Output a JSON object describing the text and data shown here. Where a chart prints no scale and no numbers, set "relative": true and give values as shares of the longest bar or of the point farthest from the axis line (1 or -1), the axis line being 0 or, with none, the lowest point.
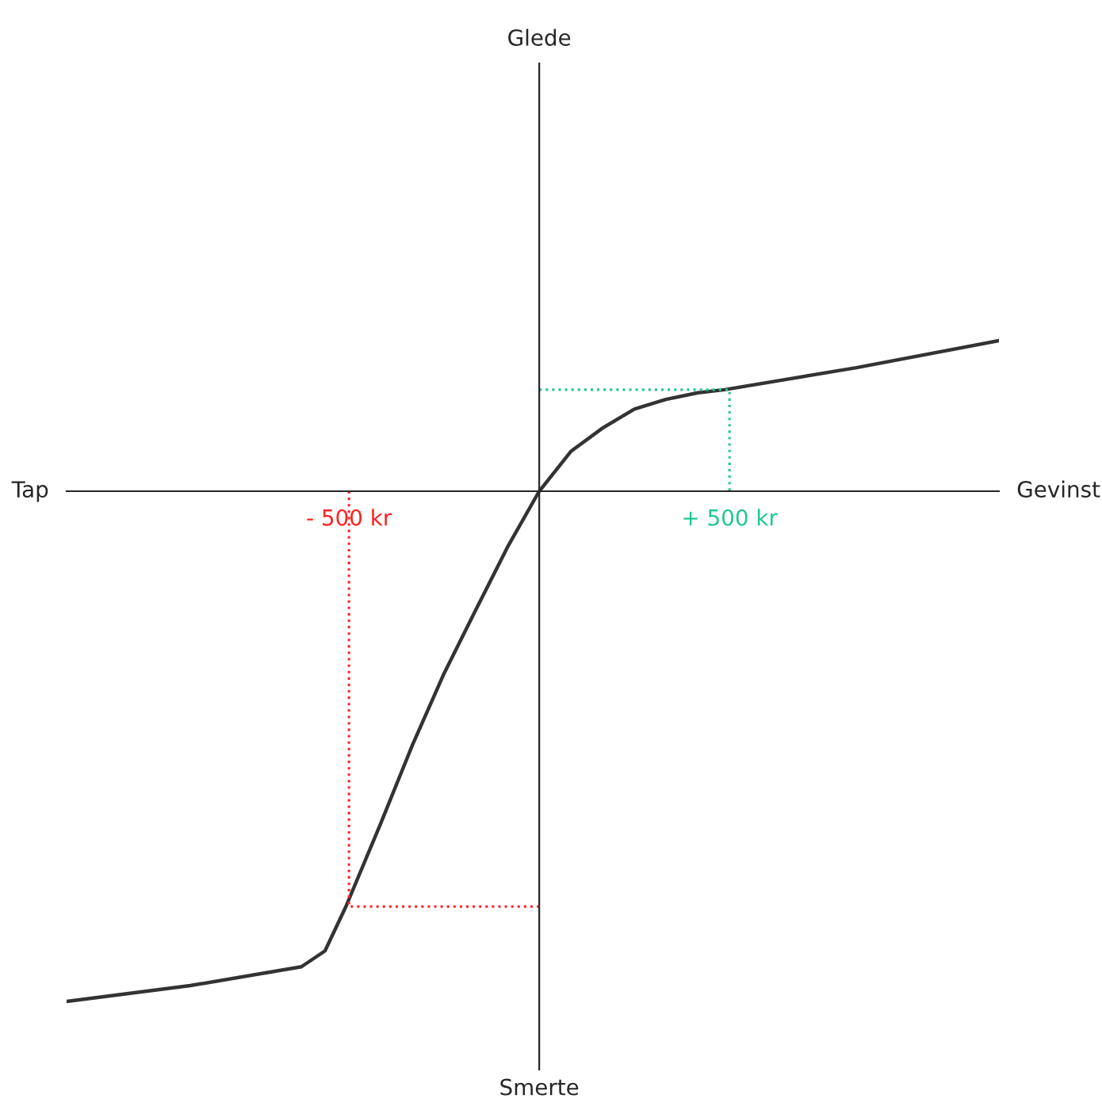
{
  "chart_data": {
    "type": "line",
    "relative": true,
    "annotations": [
      "Tap",
      "Gevinst",
      "Glede",
      "Smerte"
    ],
    "xlim": [
      -1242,
      1208
    ],
    "xticks": [
      {
        "value": -500,
        "label": "- 500 kr"
      },
      {
        "value": 500,
        "label": "+ 500 kr"
      }
    ],
    "series": [
      {
        "color": "#333333",
        "line_style": "solid",
        "x": [
          -1242,
          -917,
          -625,
          -563,
          -508,
          -417,
          -333,
          -250,
          -167,
          -83,
          0,
          83,
          167,
          250,
          333,
          417,
          487,
          833,
          1208
        ],
        "values": [
          -1,
          -0.969,
          -0.932,
          -0.901,
          -0.814,
          -0.652,
          -0.497,
          -0.357,
          -0.233,
          -0.109,
          0,
          0.078,
          0.124,
          0.161,
          0.18,
          0.193,
          0.199,
          0.242,
          0.295
        ]
      },
      {
        "color": "#ff2020",
        "line_style": "dotted",
        "x": [
          -500,
          -500,
          0
        ],
        "values": [
          0,
          -0.814,
          -0.814
        ]
      },
      {
        "color": "#20c890",
        "line_style": "dotted",
        "x": [
          0,
          500,
          500
        ],
        "values": [
          0.199,
          0.199,
          0
        ]
      }
    ]
  }
}
